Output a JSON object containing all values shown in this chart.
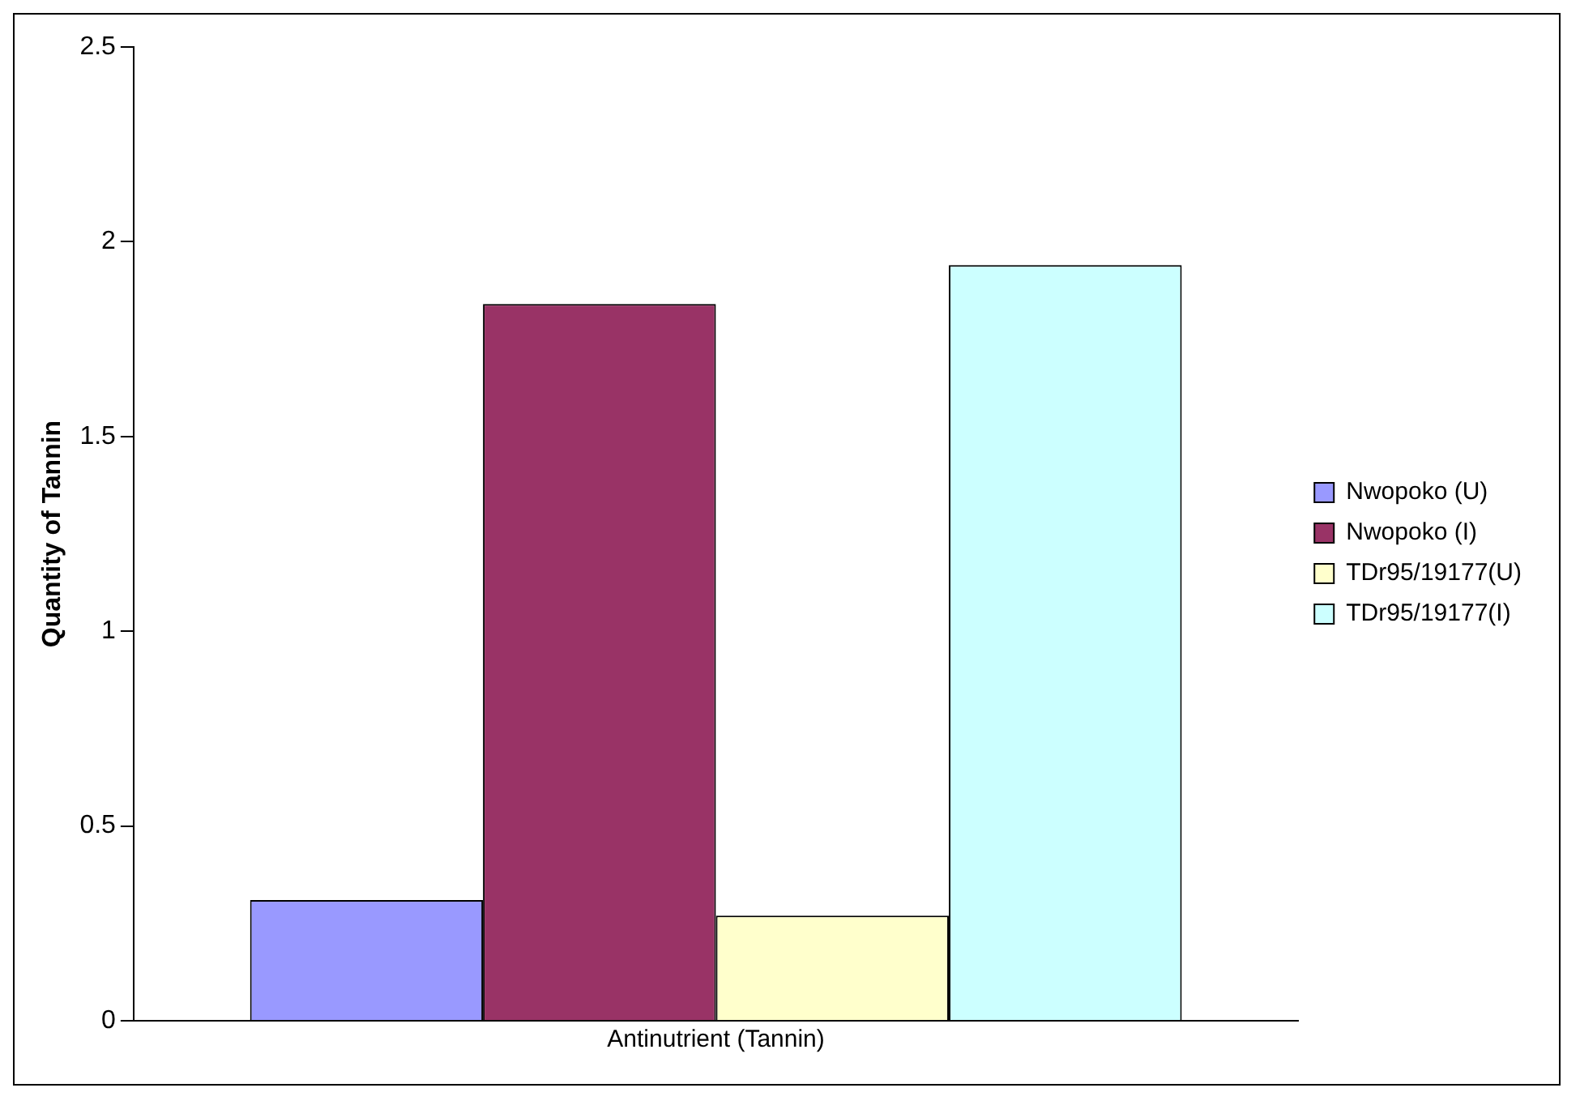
{
  "chart_data": {
    "type": "bar",
    "ylabel": "Quantity of Tannin",
    "categories": [
      "Antinutrient (Tannin)"
    ],
    "series": [
      {
        "name": "Nwopoko (U)",
        "color": "#9999ff",
        "values": [
          0.31
        ]
      },
      {
        "name": "Nwopoko (I)",
        "color": "#993366",
        "values": [
          1.84
        ]
      },
      {
        "name": "TDr95/19177(U)",
        "color": "#ffffcc",
        "values": [
          0.27
        ]
      },
      {
        "name": "TDr95/19177(I)",
        "color": "#ccffff",
        "values": [
          1.94
        ]
      }
    ],
    "ylim": [
      0,
      2.5
    ],
    "yticks": [
      0,
      0.5,
      1,
      1.5,
      2,
      2.5
    ],
    "grid": false,
    "legend": "right"
  }
}
